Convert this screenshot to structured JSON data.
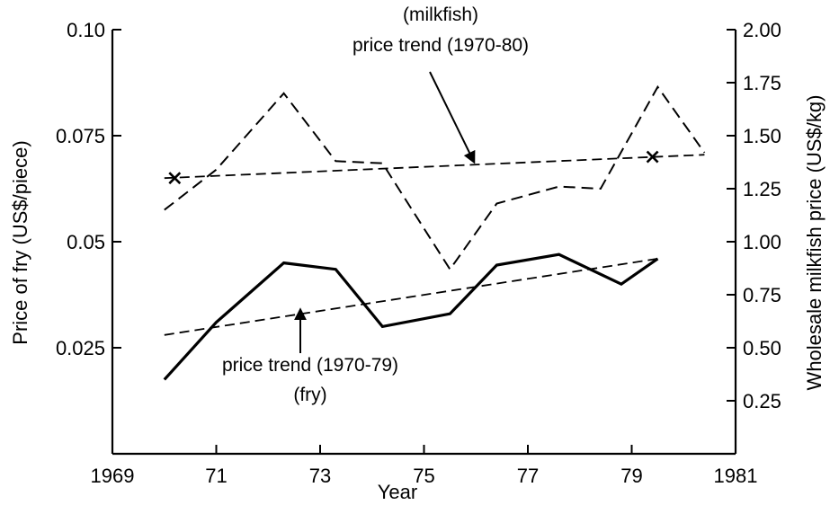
{
  "chart_data": {
    "type": "line",
    "xlabel": "Year",
    "ylabel_left": "Price of fry (US$/piece)",
    "ylabel_right": "Wholesale milkfish price (US$/kg)",
    "xlim": [
      1969,
      1981
    ],
    "ylim_left": [
      0,
      0.1
    ],
    "ylim_right": [
      0,
      2.0
    ],
    "x_ticks": [
      1969,
      1971,
      1973,
      1975,
      1977,
      1979,
      1981
    ],
    "x_tick_labels": [
      "1969",
      "71",
      "73",
      "75",
      "77",
      "79",
      "1981"
    ],
    "y_left_ticks": [
      0.025,
      0.05,
      0.075,
      0.1
    ],
    "y_left_tick_labels": [
      "0.025",
      "0.05",
      "0.075",
      "0.10"
    ],
    "y_right_ticks": [
      0.25,
      0.5,
      0.75,
      1.0,
      1.25,
      1.5,
      1.75,
      2.0
    ],
    "y_right_tick_labels": [
      "0.25",
      "0.50",
      "0.75",
      "1.00",
      "1.25",
      "1.50",
      "1.75",
      "2.00"
    ],
    "grid": false,
    "series": [
      {
        "name": "fry",
        "axis": "left",
        "style": "solid",
        "x": [
          1970.0,
          1971.0,
          1972.3,
          1973.3,
          1974.2,
          1975.5,
          1976.4,
          1977.6,
          1978.8,
          1979.5
        ],
        "values": [
          0.0175,
          0.031,
          0.045,
          0.0435,
          0.03,
          0.033,
          0.0445,
          0.047,
          0.04,
          0.046
        ]
      },
      {
        "name": "milkfish",
        "axis": "right",
        "style": "dashed",
        "x": [
          1970.0,
          1971.0,
          1972.3,
          1973.3,
          1974.2,
          1975.5,
          1976.4,
          1977.6,
          1978.4,
          1979.5,
          1980.4
        ],
        "values": [
          1.15,
          1.34,
          1.7,
          1.38,
          1.37,
          0.87,
          1.18,
          1.26,
          1.25,
          1.73,
          1.42
        ]
      },
      {
        "name": "price trend (1970-80)",
        "axis": "right",
        "style": "dashed-thin",
        "x": [
          1970.0,
          1980.4
        ],
        "values": [
          1.3,
          1.41
        ]
      },
      {
        "name": "price trend (1970-79)",
        "axis": "left",
        "style": "dashed-thin",
        "x": [
          1970.0,
          1979.5
        ],
        "values": [
          0.028,
          0.046
        ]
      }
    ],
    "markers": [
      {
        "x": 1970.2,
        "value": 1.3,
        "axis": "right",
        "symbol": "x"
      },
      {
        "x": 1979.4,
        "value": 1.4,
        "axis": "right",
        "symbol": "x"
      }
    ],
    "annotations": {
      "milkfish_label": "(milkfish)",
      "milkfish_trend_label": "price trend (1970-80)",
      "fry_trend_label": "price trend (1970-79)",
      "fry_label": "(fry)"
    }
  }
}
